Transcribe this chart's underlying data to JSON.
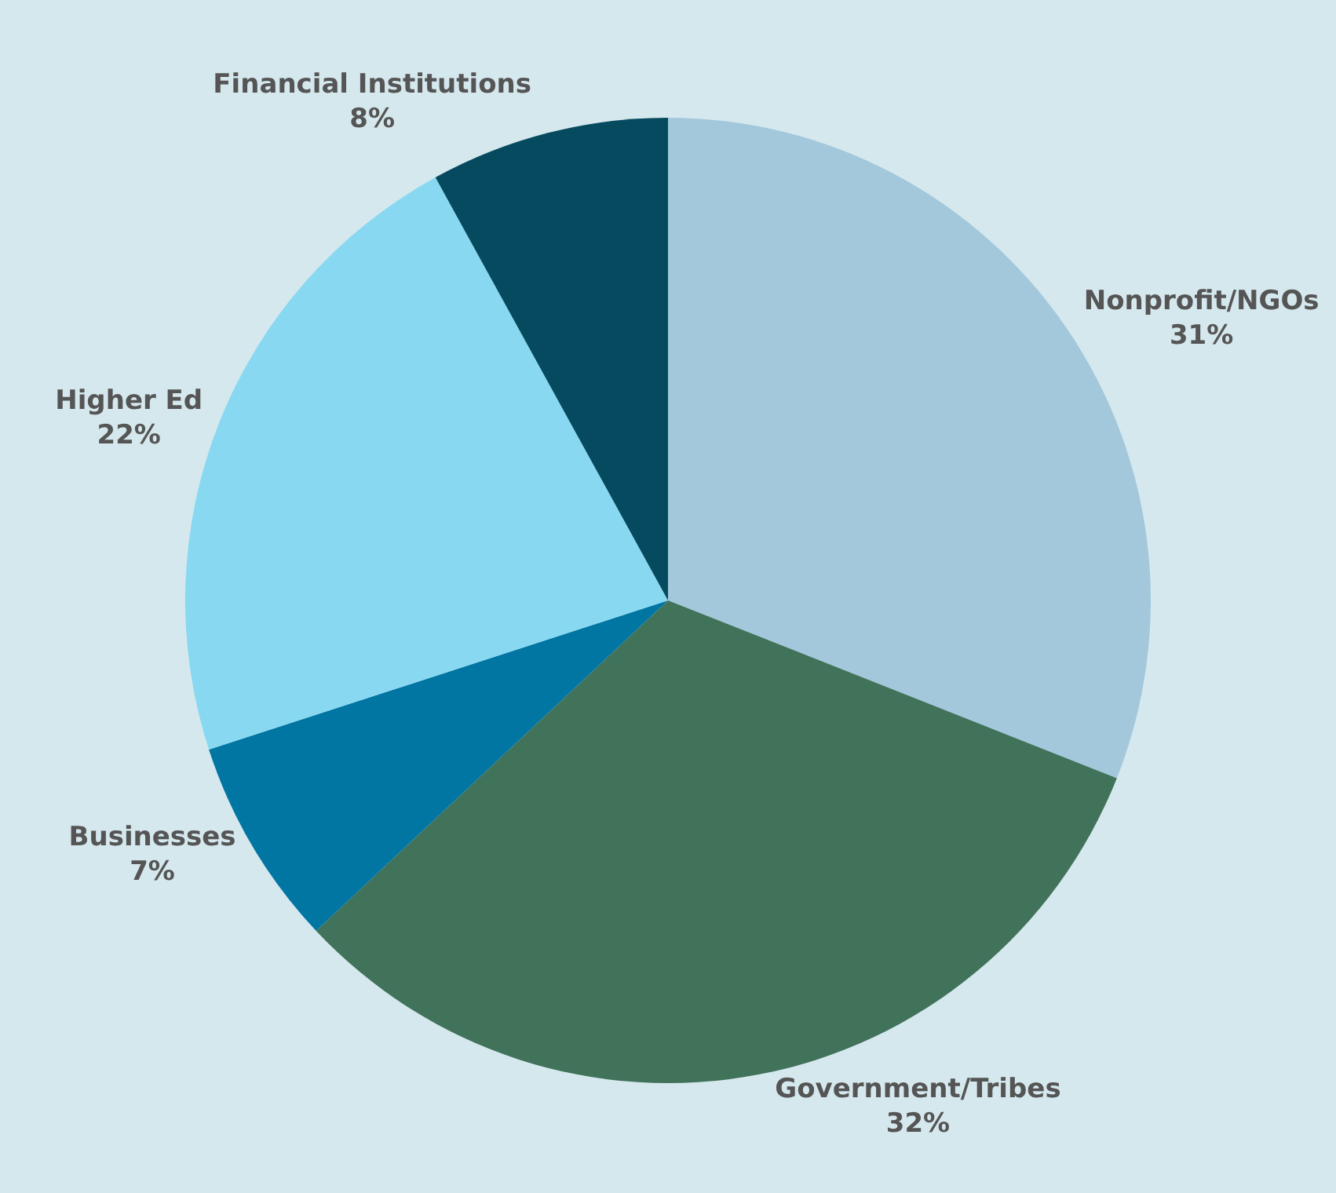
{
  "chart_data": {
    "type": "pie",
    "categories": [
      "Nonprofit/NGOs",
      "Government/Tribes",
      "Businesses",
      "Higher Ed",
      "Financial Institutions"
    ],
    "values": [
      31,
      32,
      7,
      22,
      8
    ],
    "value_labels": [
      "31%",
      "32%",
      "7%",
      "22%",
      "8%"
    ],
    "colors": [
      "#a3c8dc",
      "#41725a",
      "#0176a3",
      "#88d8f2",
      "#054a5f"
    ],
    "legend": false
  }
}
